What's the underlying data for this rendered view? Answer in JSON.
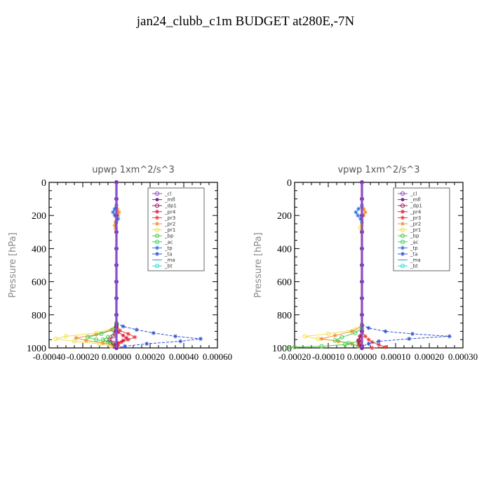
{
  "page": {
    "title": "jan24_clubb_c1m  BUDGET at280E,-7N"
  },
  "legend_entries": [
    {
      "name": "_cl",
      "color": "#8a4fc8",
      "marker": "o"
    },
    {
      "name": "_mfl",
      "color": "#7a2090",
      "marker": "dot"
    },
    {
      "name": "_dp1",
      "color": "#a0205a",
      "marker": "o"
    },
    {
      "name": "_pr4",
      "color": "#d82040",
      "marker": "star"
    },
    {
      "name": "_pr3",
      "color": "#ee3838",
      "marker": "star"
    },
    {
      "name": "_pr2",
      "color": "#f09030",
      "marker": "star"
    },
    {
      "name": "_pr1",
      "color": "#f0e040",
      "marker": "o"
    },
    {
      "name": "_bp",
      "color": "#50c840",
      "marker": "o"
    },
    {
      "name": "_ac",
      "color": "#40d060",
      "marker": "o"
    },
    {
      "name": "_tp",
      "color": "#3070e0",
      "marker": "star"
    },
    {
      "name": "_ta",
      "color": "#3050d0",
      "marker": "star"
    },
    {
      "name": "_ma",
      "color": "#30a0c0",
      "marker": "dash"
    },
    {
      "name": "_bt",
      "color": "#30d8e0",
      "marker": "o"
    }
  ],
  "chart_data": [
    {
      "type": "line",
      "title": "upwp   1xm^2/s^3",
      "xlabel": "",
      "ylabel": "Pressure  [hPa]",
      "xlim": [
        -0.0004,
        0.0006
      ],
      "ylim": [
        1000,
        0
      ],
      "xticks": [
        -0.0004,
        -0.0002,
        0.0,
        0.0002,
        0.0004,
        0.0006
      ],
      "xtick_labels": [
        "-0.00040",
        "-0.00020",
        "0.00000",
        "0.00020",
        "0.00040",
        "0.00060"
      ],
      "yticks": [
        0,
        200,
        400,
        600,
        800,
        1000
      ],
      "ytick_labels": [
        "0",
        "200",
        "400",
        "600",
        "800",
        "1000"
      ],
      "legend_position": "top-right",
      "series": [
        {
          "name": "_pr1",
          "y": [
            850,
            880,
            910,
            930,
            945,
            960,
            975,
            990,
            1000
          ],
          "x": [
            0,
            -1e-05,
            -0.00012,
            -0.0003,
            -0.00036,
            -0.00025,
            -0.0001,
            -3e-05,
            0
          ]
        },
        {
          "name": "_pr2",
          "y": [
            140,
            160,
            180,
            200,
            220,
            240,
            260,
            280,
            300
          ],
          "x": [
            0,
            5e-06,
            1.5e-05,
            1e-05,
            0,
            -5e-06,
            -1e-05,
            -5e-06,
            0
          ]
        },
        {
          "name": "_pr2",
          "y": [
            860,
            890,
            920,
            940,
            955,
            970,
            985,
            1000
          ],
          "x": [
            0,
            -3e-05,
            -0.00012,
            -0.00024,
            -0.00018,
            -8e-05,
            -2e-05,
            0
          ]
        },
        {
          "name": "_ac",
          "y": [
            860,
            890,
            915,
            935,
            950,
            965,
            980,
            1000
          ],
          "x": [
            0,
            -2e-05,
            -9e-05,
            -0.00017,
            -0.00012,
            -5e-05,
            -1e-05,
            0
          ]
        },
        {
          "name": "_bp",
          "y": [
            880,
            910,
            935,
            950,
            965,
            980,
            1000
          ],
          "x": [
            0,
            -1e-05,
            -5e-05,
            -8e-05,
            -4e-05,
            -1e-05,
            0
          ]
        },
        {
          "name": "_pr3",
          "y": [
            870,
            895,
            915,
            935,
            950,
            965,
            985,
            1000
          ],
          "x": [
            0,
            2e-05,
            7e-05,
            0.00011,
            7e-05,
            3e-05,
            1e-05,
            0
          ]
        },
        {
          "name": "_pr4",
          "y": [
            880,
            905,
            925,
            940,
            955,
            970,
            985,
            1000
          ],
          "x": [
            0,
            1e-05,
            4e-05,
            6e-05,
            4e-05,
            1e-05,
            0,
            0
          ]
        },
        {
          "name": "_tp",
          "y": [
            140,
            160,
            180,
            200,
            220,
            240
          ],
          "x": [
            0,
            -1e-05,
            -2e-05,
            -1e-05,
            1e-05,
            0
          ]
        },
        {
          "name": "_ta",
          "y": [
            850,
            870,
            890,
            910,
            930,
            945,
            960,
            975,
            990,
            1000
          ],
          "x": [
            0,
            4e-05,
            0.00012,
            0.00022,
            0.00035,
            0.0005,
            0.00038,
            0.00018,
            5e-05,
            0
          ]
        },
        {
          "name": "_dp1",
          "y": [
            870,
            900,
            930,
            950,
            970,
            990,
            1000
          ],
          "x": [
            0,
            -5e-06,
            -2e-05,
            -4e-05,
            -2e-05,
            -5e-06,
            0
          ]
        },
        {
          "name": "_mfl",
          "y": [
            0,
            100,
            200,
            300,
            400,
            500,
            600,
            700,
            800,
            900,
            1000
          ],
          "x": [
            0,
            0,
            0,
            0,
            0,
            0,
            0,
            0,
            0,
            0,
            0
          ]
        },
        {
          "name": "_cl",
          "y": [
            0,
            100,
            200,
            300,
            400,
            500,
            600,
            700,
            800,
            900,
            1000
          ],
          "x": [
            0,
            0,
            0,
            0,
            0,
            0,
            0,
            0,
            0,
            0,
            0
          ]
        }
      ]
    },
    {
      "type": "line",
      "title": "vpwp   1xm^2/s^3",
      "xlabel": "",
      "ylabel": "Pressure  [hPa]",
      "xlim": [
        -0.0002,
        0.0003
      ],
      "ylim": [
        1000,
        0
      ],
      "xticks": [
        -0.0002,
        -0.0001,
        0.0,
        0.0001,
        0.0002,
        0.0003
      ],
      "xtick_labels": [
        "-0.00020",
        "-0.00010",
        "0.00000",
        "0.00010",
        "0.00020",
        "0.00030"
      ],
      "yticks": [
        0,
        200,
        400,
        600,
        800,
        1000
      ],
      "ytick_labels": [
        "0",
        "200",
        "400",
        "600",
        "800",
        "1000"
      ],
      "legend_position": "top-right",
      "series": [
        {
          "name": "_pr1",
          "y": [
            860,
            890,
            915,
            930,
            945,
            960,
            975,
            990,
            1000
          ],
          "x": [
            0,
            -2e-05,
            -0.0001,
            -0.00017,
            -0.00013,
            -7e-05,
            -3e-05,
            -1e-05,
            0
          ]
        },
        {
          "name": "_pr1",
          "y": [
            260,
            275,
            290
          ],
          "x": [
            0,
            -5e-06,
            0
          ]
        },
        {
          "name": "_pr2",
          "y": [
            140,
            160,
            180,
            200,
            220
          ],
          "x": [
            0,
            5e-06,
            1e-05,
            5e-06,
            0
          ]
        },
        {
          "name": "_pr2",
          "y": [
            870,
            900,
            925,
            945,
            960,
            975,
            990,
            1000
          ],
          "x": [
            0,
            -3e-05,
            -8e-05,
            -0.00012,
            -7e-05,
            -3e-05,
            -1e-05,
            0
          ]
        },
        {
          "name": "_ac",
          "y": [
            880,
            910,
            935,
            955,
            970,
            990,
            1000
          ],
          "x": [
            0,
            -2e-05,
            -6e-05,
            -8e-05,
            -4e-05,
            -1e-05,
            0
          ]
        },
        {
          "name": "_bp",
          "y": [
            960,
            980,
            990,
            995,
            1000
          ],
          "x": [
            -1e-05,
            -5e-05,
            -0.00012,
            -0.0002,
            -0.00022
          ]
        },
        {
          "name": "_pr3",
          "y": [
            900,
            930,
            950,
            965,
            980,
            995,
            1000
          ],
          "x": [
            0,
            1e-05,
            2e-05,
            3e-05,
            5e-05,
            7e-05,
            3e-05
          ]
        },
        {
          "name": "_pr4",
          "y": [
            900,
            930,
            955,
            975,
            990,
            1000
          ],
          "x": [
            0,
            -5e-06,
            -1e-05,
            -1e-05,
            -5e-06,
            0
          ]
        },
        {
          "name": "_tp",
          "y": [
            140,
            160,
            180,
            200,
            220,
            240
          ],
          "x": [
            0,
            -1e-05,
            -1.8e-05,
            -1.2e-05,
            -4e-06,
            0
          ]
        },
        {
          "name": "_ta",
          "y": [
            860,
            880,
            900,
            915,
            930,
            945,
            960,
            975,
            990,
            1000
          ],
          "x": [
            0,
            2e-05,
            7e-05,
            0.00015,
            0.00026,
            0.00014,
            5e-05,
            2e-05,
            0,
            0
          ]
        },
        {
          "name": "_dp1",
          "y": [
            900,
            930,
            955,
            975,
            990,
            1000
          ],
          "x": [
            0,
            -5e-06,
            -1e-05,
            -5e-06,
            0,
            0
          ]
        },
        {
          "name": "_mfl",
          "y": [
            0,
            100,
            200,
            300,
            400,
            500,
            600,
            700,
            800,
            900,
            1000
          ],
          "x": [
            0,
            0,
            0,
            0,
            0,
            0,
            0,
            0,
            0,
            0,
            0
          ]
        },
        {
          "name": "_cl",
          "y": [
            0,
            100,
            200,
            300,
            400,
            500,
            600,
            700,
            800,
            900,
            1000
          ],
          "x": [
            0,
            0,
            0,
            0,
            0,
            0,
            0,
            0,
            0,
            0,
            0
          ]
        }
      ]
    }
  ]
}
